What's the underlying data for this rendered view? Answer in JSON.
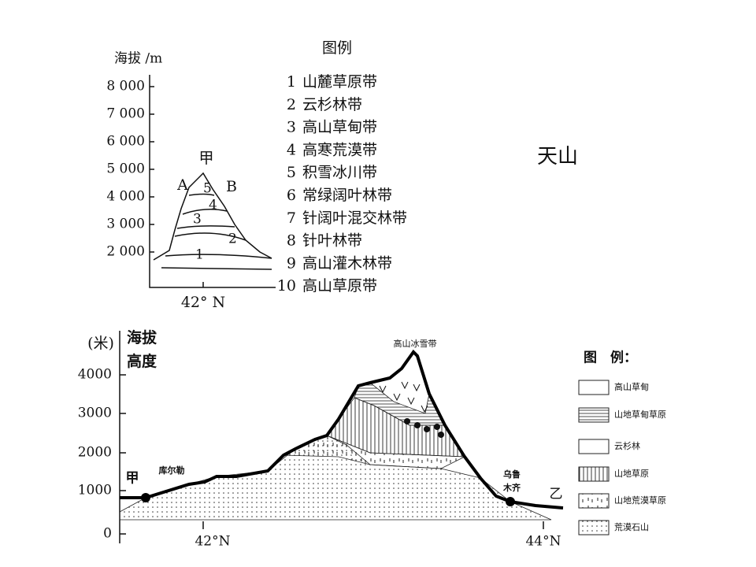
{
  "top": {
    "y_axis_title": "海拔 /m",
    "y_labels": [
      "8 000",
      "7 000",
      "6 000",
      "5 000",
      "4 000",
      "3 000",
      "2 000"
    ],
    "x_label": "42° N",
    "peak": "甲",
    "side_a": "A",
    "side_b": "B",
    "zones": [
      "1",
      "2",
      "3",
      "4",
      "5"
    ]
  },
  "legend": {
    "title": "图例",
    "items": [
      {
        "num": "1",
        "label": "山麓草原带"
      },
      {
        "num": "2",
        "label": "云杉林带"
      },
      {
        "num": "3",
        "label": "高山草甸带"
      },
      {
        "num": "4",
        "label": "高寒荒漠带"
      },
      {
        "num": "5",
        "label": "积雪冰川带"
      },
      {
        "num": "6",
        "label": "常绿阔叶林带"
      },
      {
        "num": "7",
        "label": "针阔叶混交林带"
      },
      {
        "num": "8",
        "label": "针叶林带"
      },
      {
        "num": "9",
        "label": "高山灌木林带"
      },
      {
        "num": "10",
        "label": "高山草原带"
      }
    ]
  },
  "side_title": "天山",
  "bottom": {
    "unit": "(米)",
    "y_axis_title": [
      "海拔",
      "高度"
    ],
    "y_labels": [
      "4000",
      "3000",
      "2000",
      "1000",
      "0"
    ],
    "x_labels": [
      "42°N",
      "44°N"
    ],
    "start": "甲",
    "end": "乙",
    "city_a": "库尔勒",
    "city_b": [
      "乌鲁",
      "木齐"
    ],
    "peak_label": "高山冰雪带",
    "legend": {
      "title": "图　例：",
      "items": [
        "高山草甸",
        "山地草甸草原",
        "云杉林",
        "山地草原",
        "山地荒漠草原",
        "荒漠石山"
      ]
    }
  }
}
